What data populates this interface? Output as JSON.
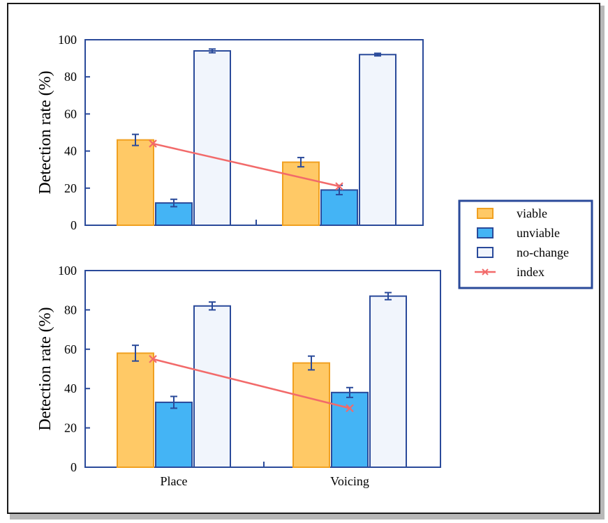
{
  "chart_data": [
    {
      "type": "bar",
      "categories": [
        "Place",
        "Voicing"
      ],
      "ylabel": "Detection rate (%)",
      "ylim": [
        0,
        100
      ],
      "yticks": [
        0,
        20,
        40,
        60,
        80,
        100
      ],
      "series": [
        {
          "name": "viable",
          "values": [
            46,
            34
          ],
          "errors": [
            3,
            2.5
          ]
        },
        {
          "name": "unviable",
          "values": [
            12,
            19
          ],
          "errors": [
            2,
            2.5
          ]
        },
        {
          "name": "no-change",
          "values": [
            94,
            92
          ],
          "errors": [
            1,
            0.7
          ]
        },
        {
          "name": "index",
          "values": [
            44,
            21
          ]
        }
      ]
    },
    {
      "type": "bar",
      "categories": [
        "Place",
        "Voicing"
      ],
      "ylabel": "Detection rate (%)",
      "ylim": [
        0,
        100
      ],
      "yticks": [
        0,
        20,
        40,
        60,
        80,
        100
      ],
      "series": [
        {
          "name": "viable",
          "values": [
            58,
            53
          ],
          "errors": [
            4,
            3.5
          ]
        },
        {
          "name": "unviable",
          "values": [
            33,
            38
          ],
          "errors": [
            3,
            2.5
          ]
        },
        {
          "name": "no-change",
          "values": [
            82,
            87
          ],
          "errors": [
            2,
            1.8
          ]
        },
        {
          "name": "index",
          "values": [
            55,
            30
          ]
        }
      ]
    }
  ],
  "legend": {
    "placement": "right",
    "items": [
      {
        "label": "viable",
        "kind": "bar",
        "fill": "#ffc966",
        "stroke": "#f0a020"
      },
      {
        "label": "unviable",
        "kind": "bar",
        "fill": "#44b4f5",
        "stroke": "#2a4a9a"
      },
      {
        "label": "no-change",
        "kind": "bar",
        "fill": "#f1f5fc",
        "stroke": "#2a4a9a"
      },
      {
        "label": "index",
        "kind": "line",
        "stroke": "#f26a6a"
      }
    ]
  },
  "colors": {
    "viable_fill": "#ffc966",
    "viable_stroke": "#f0a020",
    "unviable_fill": "#44b4f5",
    "unviable_stroke": "#2a4a9a",
    "nochange_fill": "#f1f5fc",
    "nochange_stroke": "#2a4a9a",
    "index_line": "#f26a6a",
    "axis": "#2a4a9a",
    "error": "#2a4a9a"
  }
}
